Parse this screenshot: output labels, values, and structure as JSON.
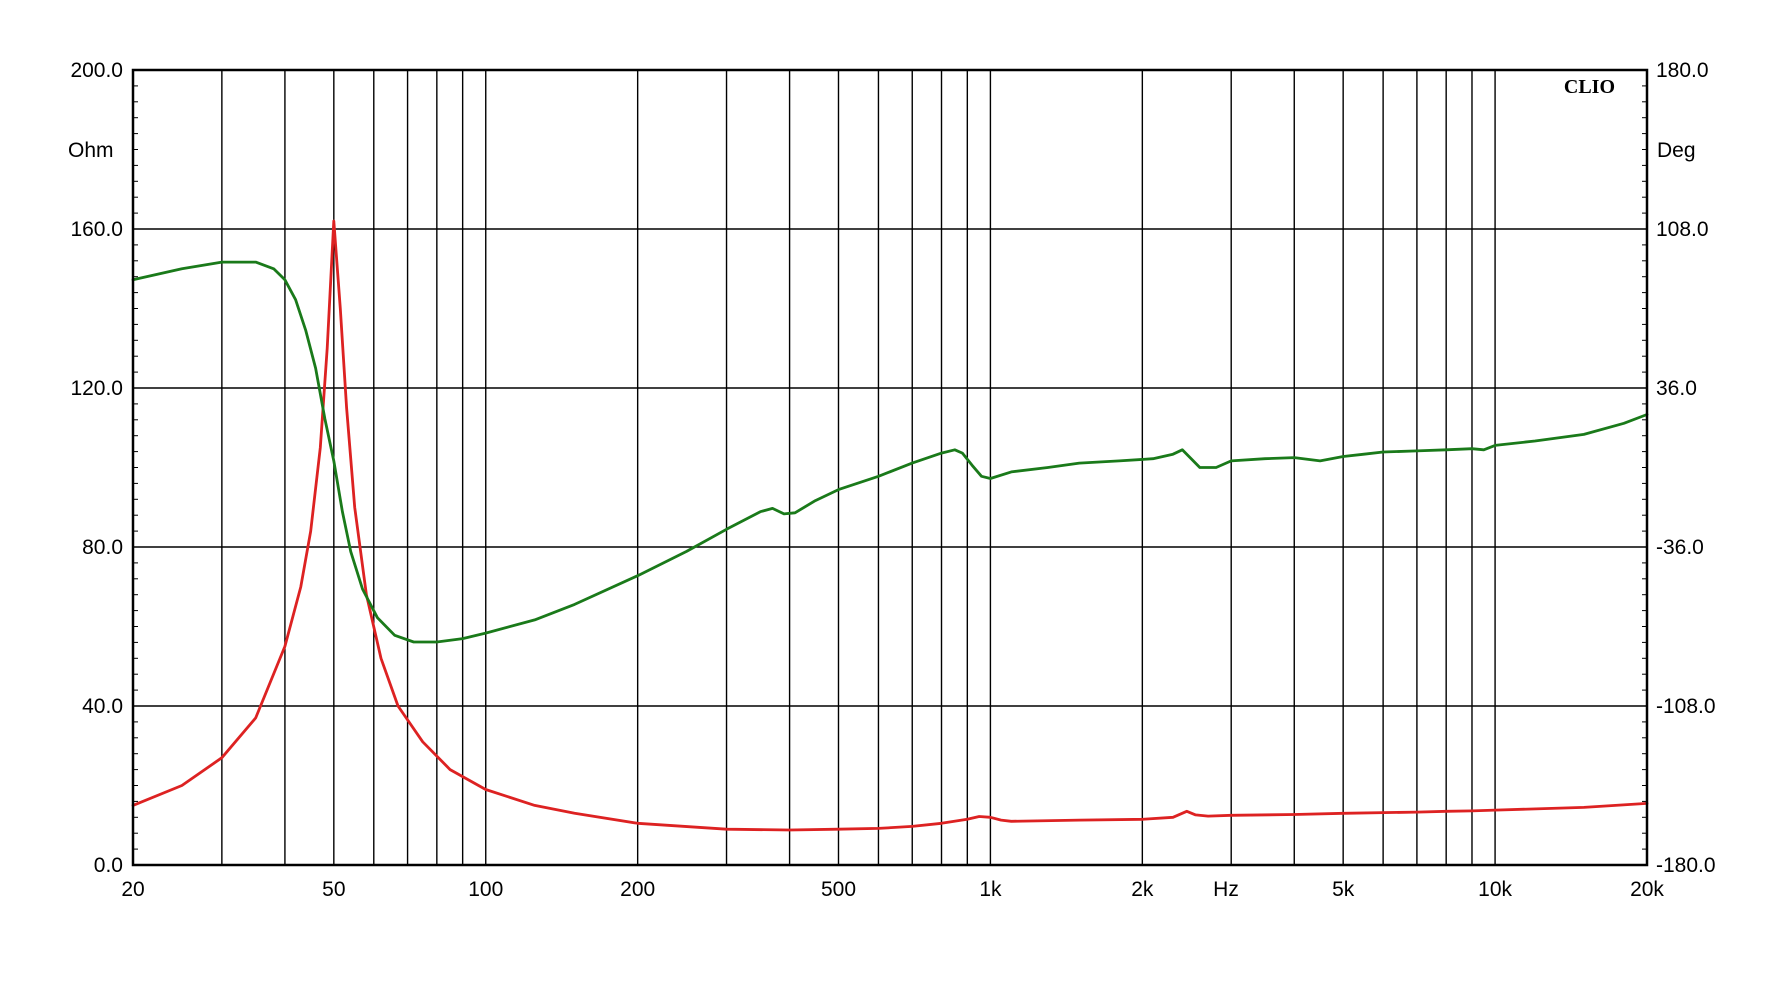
{
  "chart_data": {
    "type": "line",
    "brand": "CLIO",
    "x_scale": "log",
    "xlim": [
      20,
      20000
    ],
    "xlabel": "Hz",
    "x_tick_labels": [
      {
        "value": 20,
        "label": "20"
      },
      {
        "value": 50,
        "label": "50"
      },
      {
        "value": 100,
        "label": "100"
      },
      {
        "value": 200,
        "label": "200"
      },
      {
        "value": 500,
        "label": "500"
      },
      {
        "value": 1000,
        "label": "1k"
      },
      {
        "value": 2000,
        "label": "2k"
      },
      {
        "value": 5000,
        "label": "5k"
      },
      {
        "value": 10000,
        "label": "10k"
      },
      {
        "value": 20000,
        "label": "20k"
      }
    ],
    "y_left": {
      "unit": "Ohm",
      "lim": [
        0,
        200
      ],
      "ticks": [
        "0.0",
        "40.0",
        "80.0",
        "120.0",
        "160.0",
        "200.0"
      ]
    },
    "y_right": {
      "unit": "Deg",
      "lim": [
        -180,
        180
      ],
      "ticks": [
        "-180.0",
        "-108.0",
        "-36.0",
        "36.0",
        "108.0",
        "180.0"
      ]
    },
    "grid": true,
    "series": [
      {
        "axis": "left",
        "color": "#dd2222",
        "points": [
          [
            20,
            15
          ],
          [
            25,
            20
          ],
          [
            30,
            27
          ],
          [
            35,
            37
          ],
          [
            40,
            55
          ],
          [
            43,
            70
          ],
          [
            45,
            84
          ],
          [
            47,
            105
          ],
          [
            48.5,
            130
          ],
          [
            50,
            162
          ],
          [
            51.5,
            140
          ],
          [
            53,
            115
          ],
          [
            55,
            90
          ],
          [
            58,
            68
          ],
          [
            62,
            52
          ],
          [
            67,
            40
          ],
          [
            75,
            31
          ],
          [
            85,
            24
          ],
          [
            100,
            19
          ],
          [
            125,
            15
          ],
          [
            150,
            13
          ],
          [
            200,
            10.5
          ],
          [
            300,
            9
          ],
          [
            400,
            8.8
          ],
          [
            500,
            9
          ],
          [
            600,
            9.2
          ],
          [
            700,
            9.7
          ],
          [
            800,
            10.5
          ],
          [
            900,
            11.5
          ],
          [
            950,
            12.2
          ],
          [
            1000,
            12
          ],
          [
            1050,
            11.3
          ],
          [
            1100,
            11
          ],
          [
            1500,
            11.3
          ],
          [
            2000,
            11.5
          ],
          [
            2300,
            12
          ],
          [
            2450,
            13.5
          ],
          [
            2550,
            12.6
          ],
          [
            2700,
            12.3
          ],
          [
            3000,
            12.5
          ],
          [
            4000,
            12.7
          ],
          [
            5000,
            13
          ],
          [
            7000,
            13.3
          ],
          [
            8000,
            13.5
          ],
          [
            9000,
            13.6
          ],
          [
            10000,
            13.8
          ],
          [
            15000,
            14.5
          ],
          [
            20000,
            15.5
          ]
        ]
      },
      {
        "axis": "right",
        "color": "#1a7a1a",
        "points": [
          [
            20,
            85
          ],
          [
            25,
            90
          ],
          [
            30,
            93
          ],
          [
            35,
            93
          ],
          [
            38,
            90
          ],
          [
            40,
            85
          ],
          [
            42,
            76
          ],
          [
            44,
            62
          ],
          [
            46,
            45
          ],
          [
            48,
            22
          ],
          [
            50,
            3
          ],
          [
            52,
            -20
          ],
          [
            54,
            -38
          ],
          [
            57,
            -55
          ],
          [
            61,
            -68
          ],
          [
            66,
            -76
          ],
          [
            72,
            -79
          ],
          [
            80,
            -79
          ],
          [
            90,
            -77.5
          ],
          [
            100,
            -75
          ],
          [
            125,
            -69
          ],
          [
            150,
            -62
          ],
          [
            200,
            -49
          ],
          [
            250,
            -38
          ],
          [
            300,
            -28
          ],
          [
            350,
            -20
          ],
          [
            370,
            -18.5
          ],
          [
            390,
            -21
          ],
          [
            410,
            -20.5
          ],
          [
            450,
            -15
          ],
          [
            500,
            -10
          ],
          [
            600,
            -4
          ],
          [
            700,
            2
          ],
          [
            800,
            6.5
          ],
          [
            850,
            8
          ],
          [
            880,
            6.5
          ],
          [
            920,
            1
          ],
          [
            960,
            -4
          ],
          [
            1000,
            -5
          ],
          [
            1100,
            -2
          ],
          [
            1300,
            0
          ],
          [
            1500,
            2
          ],
          [
            1800,
            3
          ],
          [
            2100,
            4
          ],
          [
            2300,
            6
          ],
          [
            2400,
            8
          ],
          [
            2500,
            4
          ],
          [
            2600,
            0
          ],
          [
            2800,
            0
          ],
          [
            3000,
            3
          ],
          [
            3500,
            4
          ],
          [
            4000,
            4.5
          ],
          [
            4500,
            3
          ],
          [
            5000,
            5
          ],
          [
            5500,
            6
          ],
          [
            6000,
            7
          ],
          [
            7000,
            7.5
          ],
          [
            8000,
            8
          ],
          [
            9000,
            8.5
          ],
          [
            9500,
            8
          ],
          [
            10000,
            10
          ],
          [
            12000,
            12
          ],
          [
            15000,
            15
          ],
          [
            18000,
            20
          ],
          [
            20000,
            24
          ]
        ]
      }
    ]
  }
}
